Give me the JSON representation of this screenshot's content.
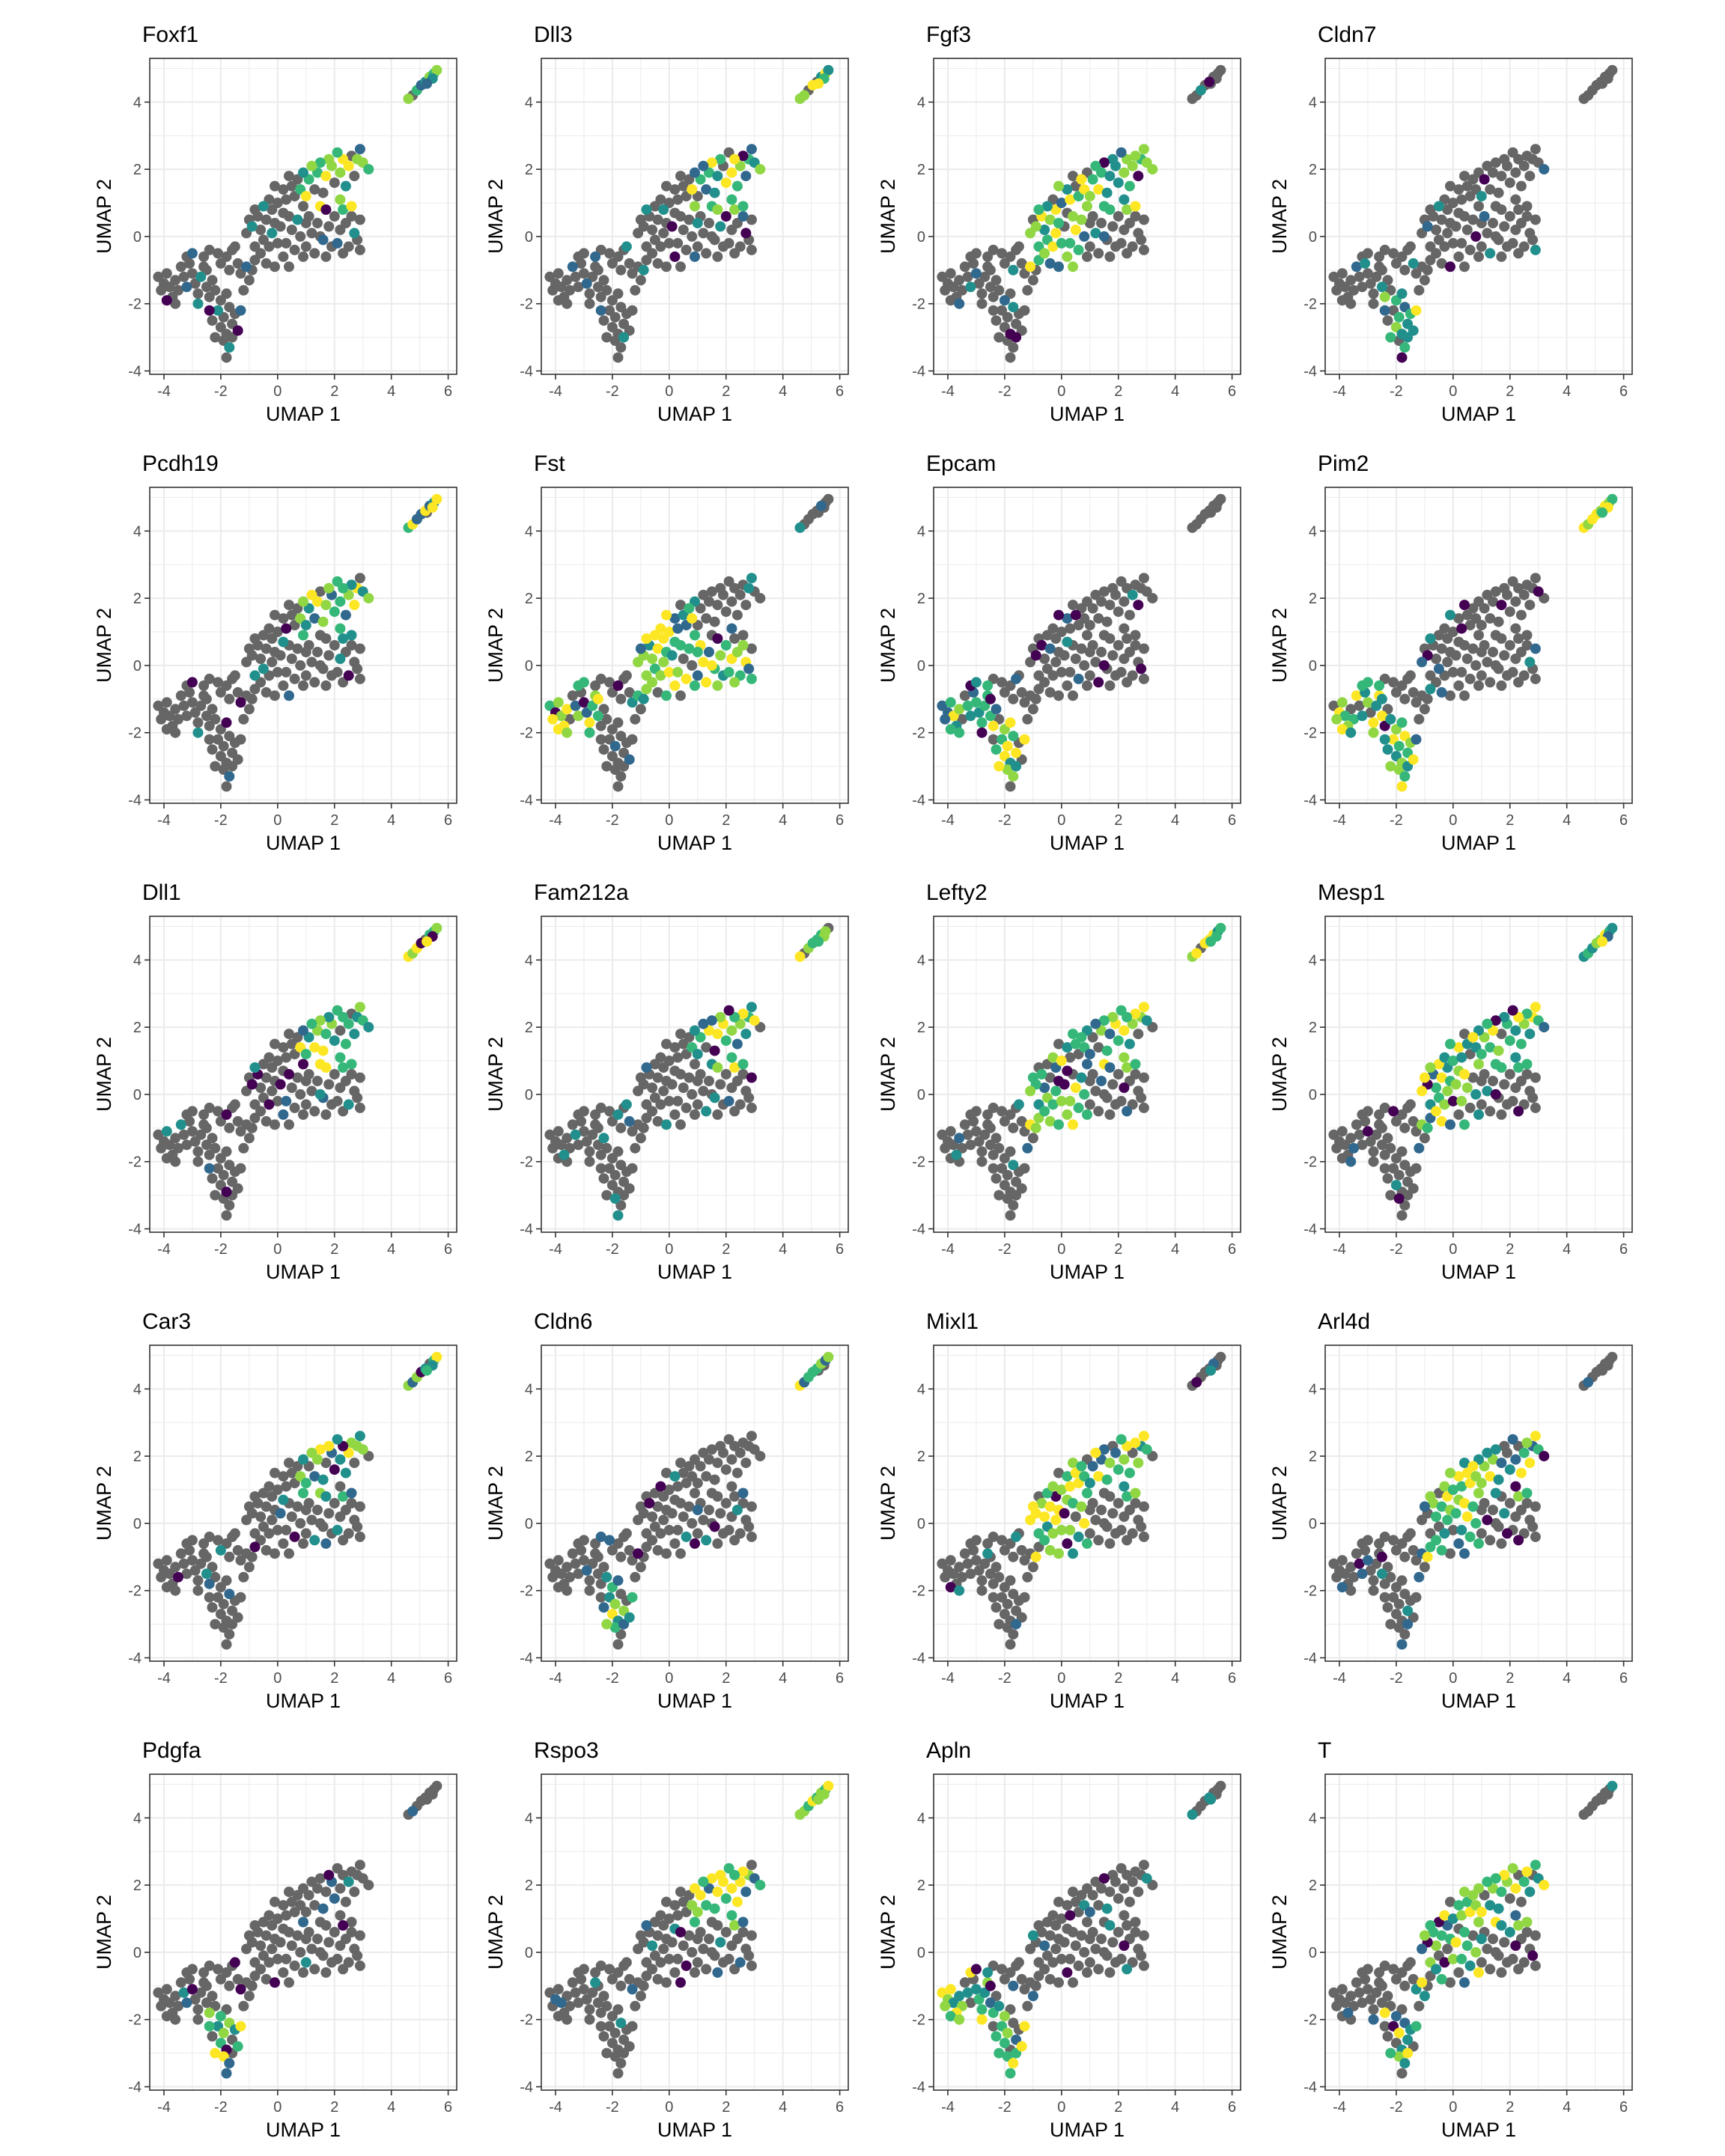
{
  "figure": {
    "description_free": true,
    "layout": {
      "rows": 5,
      "cols": 4
    }
  },
  "colors": {
    "not_expressed": "#666666",
    "grid": "#ebebeb",
    "panel_border": "#333333",
    "palette_viridis": [
      "#440154",
      "#31688e",
      "#21908d",
      "#35b779",
      "#90d743",
      "#fde725"
    ]
  },
  "chart_data": {
    "type": "scatter",
    "xlabel": "UMAP 1",
    "ylabel": "UMAP 2",
    "xlim": [
      -4.5,
      6.3
    ],
    "ylim": [
      -4.1,
      5.3
    ],
    "xticks": [
      -4,
      -2,
      0,
      2,
      4,
      6
    ],
    "yticks": [
      -4,
      -2,
      0,
      2,
      4
    ],
    "grid": true,
    "legend": "none",
    "panels": [
      {
        "title": "Foxf1",
        "regions": [
          "top-right",
          "far-right"
        ]
      },
      {
        "title": "Dll3",
        "regions": [
          "top-right",
          "far-right"
        ]
      },
      {
        "title": "Fgf3",
        "regions": [
          "top-right",
          "mid"
        ]
      },
      {
        "title": "Cldn7",
        "regions": [
          "bottom-left",
          "tail"
        ]
      },
      {
        "title": "Pcdh19",
        "regions": [
          "top-right",
          "far-right"
        ]
      },
      {
        "title": "Fst",
        "regions": [
          "left",
          "mid",
          "right"
        ]
      },
      {
        "title": "Epcam",
        "regions": [
          "left",
          "bottom-left",
          "tail"
        ]
      },
      {
        "title": "Pim2",
        "regions": [
          "left",
          "bottom-left",
          "far-right"
        ]
      },
      {
        "title": "Dll1",
        "regions": [
          "top-right",
          "far-right"
        ]
      },
      {
        "title": "Fam212a",
        "regions": [
          "top-right",
          "far-right"
        ]
      },
      {
        "title": "Lefty2",
        "regions": [
          "top-right",
          "mid",
          "far-right"
        ]
      },
      {
        "title": "Mesp1",
        "regions": [
          "top-right",
          "mid",
          "far-right"
        ]
      },
      {
        "title": "Car3",
        "regions": [
          "top-right",
          "far-right"
        ]
      },
      {
        "title": "Cldn6",
        "regions": [
          "bottom-left",
          "tail",
          "far-right"
        ]
      },
      {
        "title": "Mixl1",
        "regions": [
          "mid",
          "top-right"
        ]
      },
      {
        "title": "Arl4d",
        "regions": [
          "top-right",
          "mid"
        ]
      },
      {
        "title": "Pdgfa",
        "regions": [
          "bottom-left",
          "tail"
        ]
      },
      {
        "title": "Rspo3",
        "regions": [
          "top-right",
          "far-right"
        ]
      },
      {
        "title": "Apln",
        "regions": [
          "left",
          "bottom-left",
          "tail"
        ]
      },
      {
        "title": "T",
        "regions": [
          "mid",
          "top-right",
          "bottom-left"
        ]
      }
    ],
    "cells": [
      [
        -4.2,
        -1.2
      ],
      [
        -4.0,
        -1.4
      ],
      [
        -3.8,
        -1.5
      ],
      [
        -3.9,
        -1.1
      ],
      [
        -3.6,
        -1.3
      ],
      [
        -3.5,
        -1.6
      ],
      [
        -3.3,
        -1.2
      ],
      [
        -3.2,
        -1.5
      ],
      [
        -3.0,
        -1.1
      ],
      [
        -3.4,
        -0.9
      ],
      [
        -3.1,
        -0.8
      ],
      [
        -2.9,
        -1.4
      ],
      [
        -2.7,
        -1.2
      ],
      [
        -2.6,
        -0.9
      ],
      [
        -2.5,
        -1.5
      ],
      [
        -2.8,
        -1.7
      ],
      [
        -3.7,
        -1.8
      ],
      [
        -4.1,
        -1.6
      ],
      [
        -3.9,
        -1.9
      ],
      [
        -3.6,
        -2.0
      ],
      [
        -2.4,
        -1.8
      ],
      [
        -2.2,
        -1.6
      ],
      [
        -2.0,
        -1.9
      ],
      [
        -1.8,
        -1.7
      ],
      [
        -2.1,
        -2.2
      ],
      [
        -1.9,
        -2.4
      ],
      [
        -1.7,
        -2.1
      ],
      [
        -1.5,
        -2.3
      ],
      [
        -2.3,
        -2.5
      ],
      [
        -2.0,
        -2.7
      ],
      [
        -1.8,
        -2.9
      ],
      [
        -1.6,
        -2.6
      ],
      [
        -1.9,
        -3.1
      ],
      [
        -1.7,
        -3.3
      ],
      [
        -1.8,
        -3.6
      ],
      [
        -1.6,
        -3.0
      ],
      [
        -1.4,
        -2.8
      ],
      [
        -2.2,
        -3.0
      ],
      [
        -2.4,
        -2.2
      ],
      [
        -1.3,
        -2.2
      ],
      [
        -3.2,
        -0.6
      ],
      [
        -3.0,
        -0.5
      ],
      [
        -2.6,
        -0.6
      ],
      [
        -2.4,
        -0.4
      ],
      [
        -2.1,
        -0.5
      ],
      [
        -1.8,
        -0.6
      ],
      [
        -1.6,
        -0.4
      ],
      [
        -2.0,
        -0.8
      ],
      [
        -1.7,
        -1.0
      ],
      [
        -1.4,
        -0.8
      ],
      [
        -1.3,
        -1.1
      ],
      [
        -1.1,
        -0.9
      ],
      [
        -1.0,
        -1.3
      ],
      [
        -1.2,
        -1.6
      ],
      [
        -0.9,
        -1.0
      ],
      [
        -0.8,
        -0.7
      ],
      [
        -1.5,
        -0.3
      ],
      [
        -2.5,
        -1.0
      ],
      [
        -2.3,
        -1.3
      ],
      [
        -2.8,
        -2.0
      ],
      [
        -0.8,
        -0.3
      ],
      [
        -0.6,
        -0.5
      ],
      [
        -0.5,
        -0.1
      ],
      [
        -0.4,
        -0.8
      ],
      [
        -0.3,
        -0.3
      ],
      [
        -0.2,
        0.1
      ],
      [
        -0.6,
        0.2
      ],
      [
        -0.9,
        0.3
      ],
      [
        -0.7,
        0.6
      ],
      [
        -0.4,
        0.5
      ],
      [
        -0.1,
        0.4
      ],
      [
        0.0,
        -0.2
      ],
      [
        0.1,
        0.3
      ],
      [
        0.2,
        0.7
      ],
      [
        -0.2,
        0.8
      ],
      [
        -0.5,
        0.9
      ],
      [
        -0.8,
        0.8
      ],
      [
        -1.0,
        0.5
      ],
      [
        -1.1,
        0.1
      ],
      [
        -0.3,
        1.1
      ],
      [
        0.0,
        1.0
      ],
      [
        0.3,
        1.1
      ],
      [
        0.4,
        0.6
      ],
      [
        0.5,
        0.2
      ],
      [
        0.3,
        -0.2
      ],
      [
        0.6,
        -0.4
      ],
      [
        0.8,
        0.0
      ],
      [
        0.7,
        0.5
      ],
      [
        0.9,
        0.9
      ],
      [
        0.6,
        1.2
      ],
      [
        0.2,
        1.4
      ],
      [
        -0.1,
        1.5
      ],
      [
        0.5,
        1.5
      ],
      [
        0.8,
        1.4
      ],
      [
        1.0,
        1.2
      ],
      [
        1.1,
        0.6
      ],
      [
        1.2,
        0.1
      ],
      [
        1.0,
        -0.3
      ],
      [
        1.3,
        -0.5
      ],
      [
        0.9,
        -0.6
      ],
      [
        1.4,
        0.4
      ],
      [
        1.5,
        0.9
      ],
      [
        1.3,
        1.4
      ],
      [
        1.6,
        1.3
      ],
      [
        1.7,
        0.8
      ],
      [
        1.8,
        0.3
      ],
      [
        1.6,
        -0.1
      ],
      [
        1.9,
        -0.3
      ],
      [
        2.1,
        -0.2
      ],
      [
        2.2,
        0.2
      ],
      [
        2.0,
        0.6
      ],
      [
        2.3,
        0.8
      ],
      [
        2.4,
        0.4
      ],
      [
        2.6,
        0.6
      ],
      [
        2.7,
        0.1
      ],
      [
        2.5,
        -0.3
      ],
      [
        2.8,
        -0.1
      ],
      [
        2.9,
        0.5
      ],
      [
        2.6,
        0.9
      ],
      [
        2.2,
        1.1
      ],
      [
        1.1,
        1.7
      ],
      [
        1.4,
        1.9
      ],
      [
        1.7,
        1.8
      ],
      [
        2.0,
        1.6
      ],
      [
        1.9,
        2.1
      ],
      [
        2.2,
        1.9
      ],
      [
        2.4,
        1.5
      ],
      [
        2.5,
        2.1
      ],
      [
        2.7,
        1.8
      ],
      [
        2.8,
        2.3
      ],
      [
        3.0,
        2.2
      ],
      [
        2.9,
        2.6
      ],
      [
        2.6,
        2.4
      ],
      [
        2.3,
        2.3
      ],
      [
        2.1,
        2.5
      ],
      [
        1.8,
        2.3
      ],
      [
        1.5,
        2.2
      ],
      [
        1.2,
        2.1
      ],
      [
        0.9,
        1.9
      ],
      [
        3.2,
        2.0
      ],
      [
        0.4,
        1.8
      ],
      [
        0.7,
        1.7
      ],
      [
        1.0,
        0.4
      ],
      [
        1.5,
        0.0
      ],
      [
        0.2,
        -0.6
      ],
      [
        -0.1,
        -0.9
      ],
      [
        0.4,
        -0.9
      ],
      [
        2.3,
        -0.5
      ],
      [
        2.9,
        -0.4
      ],
      [
        1.7,
        -0.6
      ],
      [
        4.6,
        4.1
      ],
      [
        4.75,
        4.2
      ],
      [
        4.9,
        4.35
      ],
      [
        5.05,
        4.5
      ],
      [
        5.2,
        4.6
      ],
      [
        5.35,
        4.75
      ],
      [
        5.5,
        4.85
      ],
      [
        5.6,
        4.95
      ],
      [
        5.45,
        4.7
      ],
      [
        5.25,
        4.55
      ]
    ]
  }
}
